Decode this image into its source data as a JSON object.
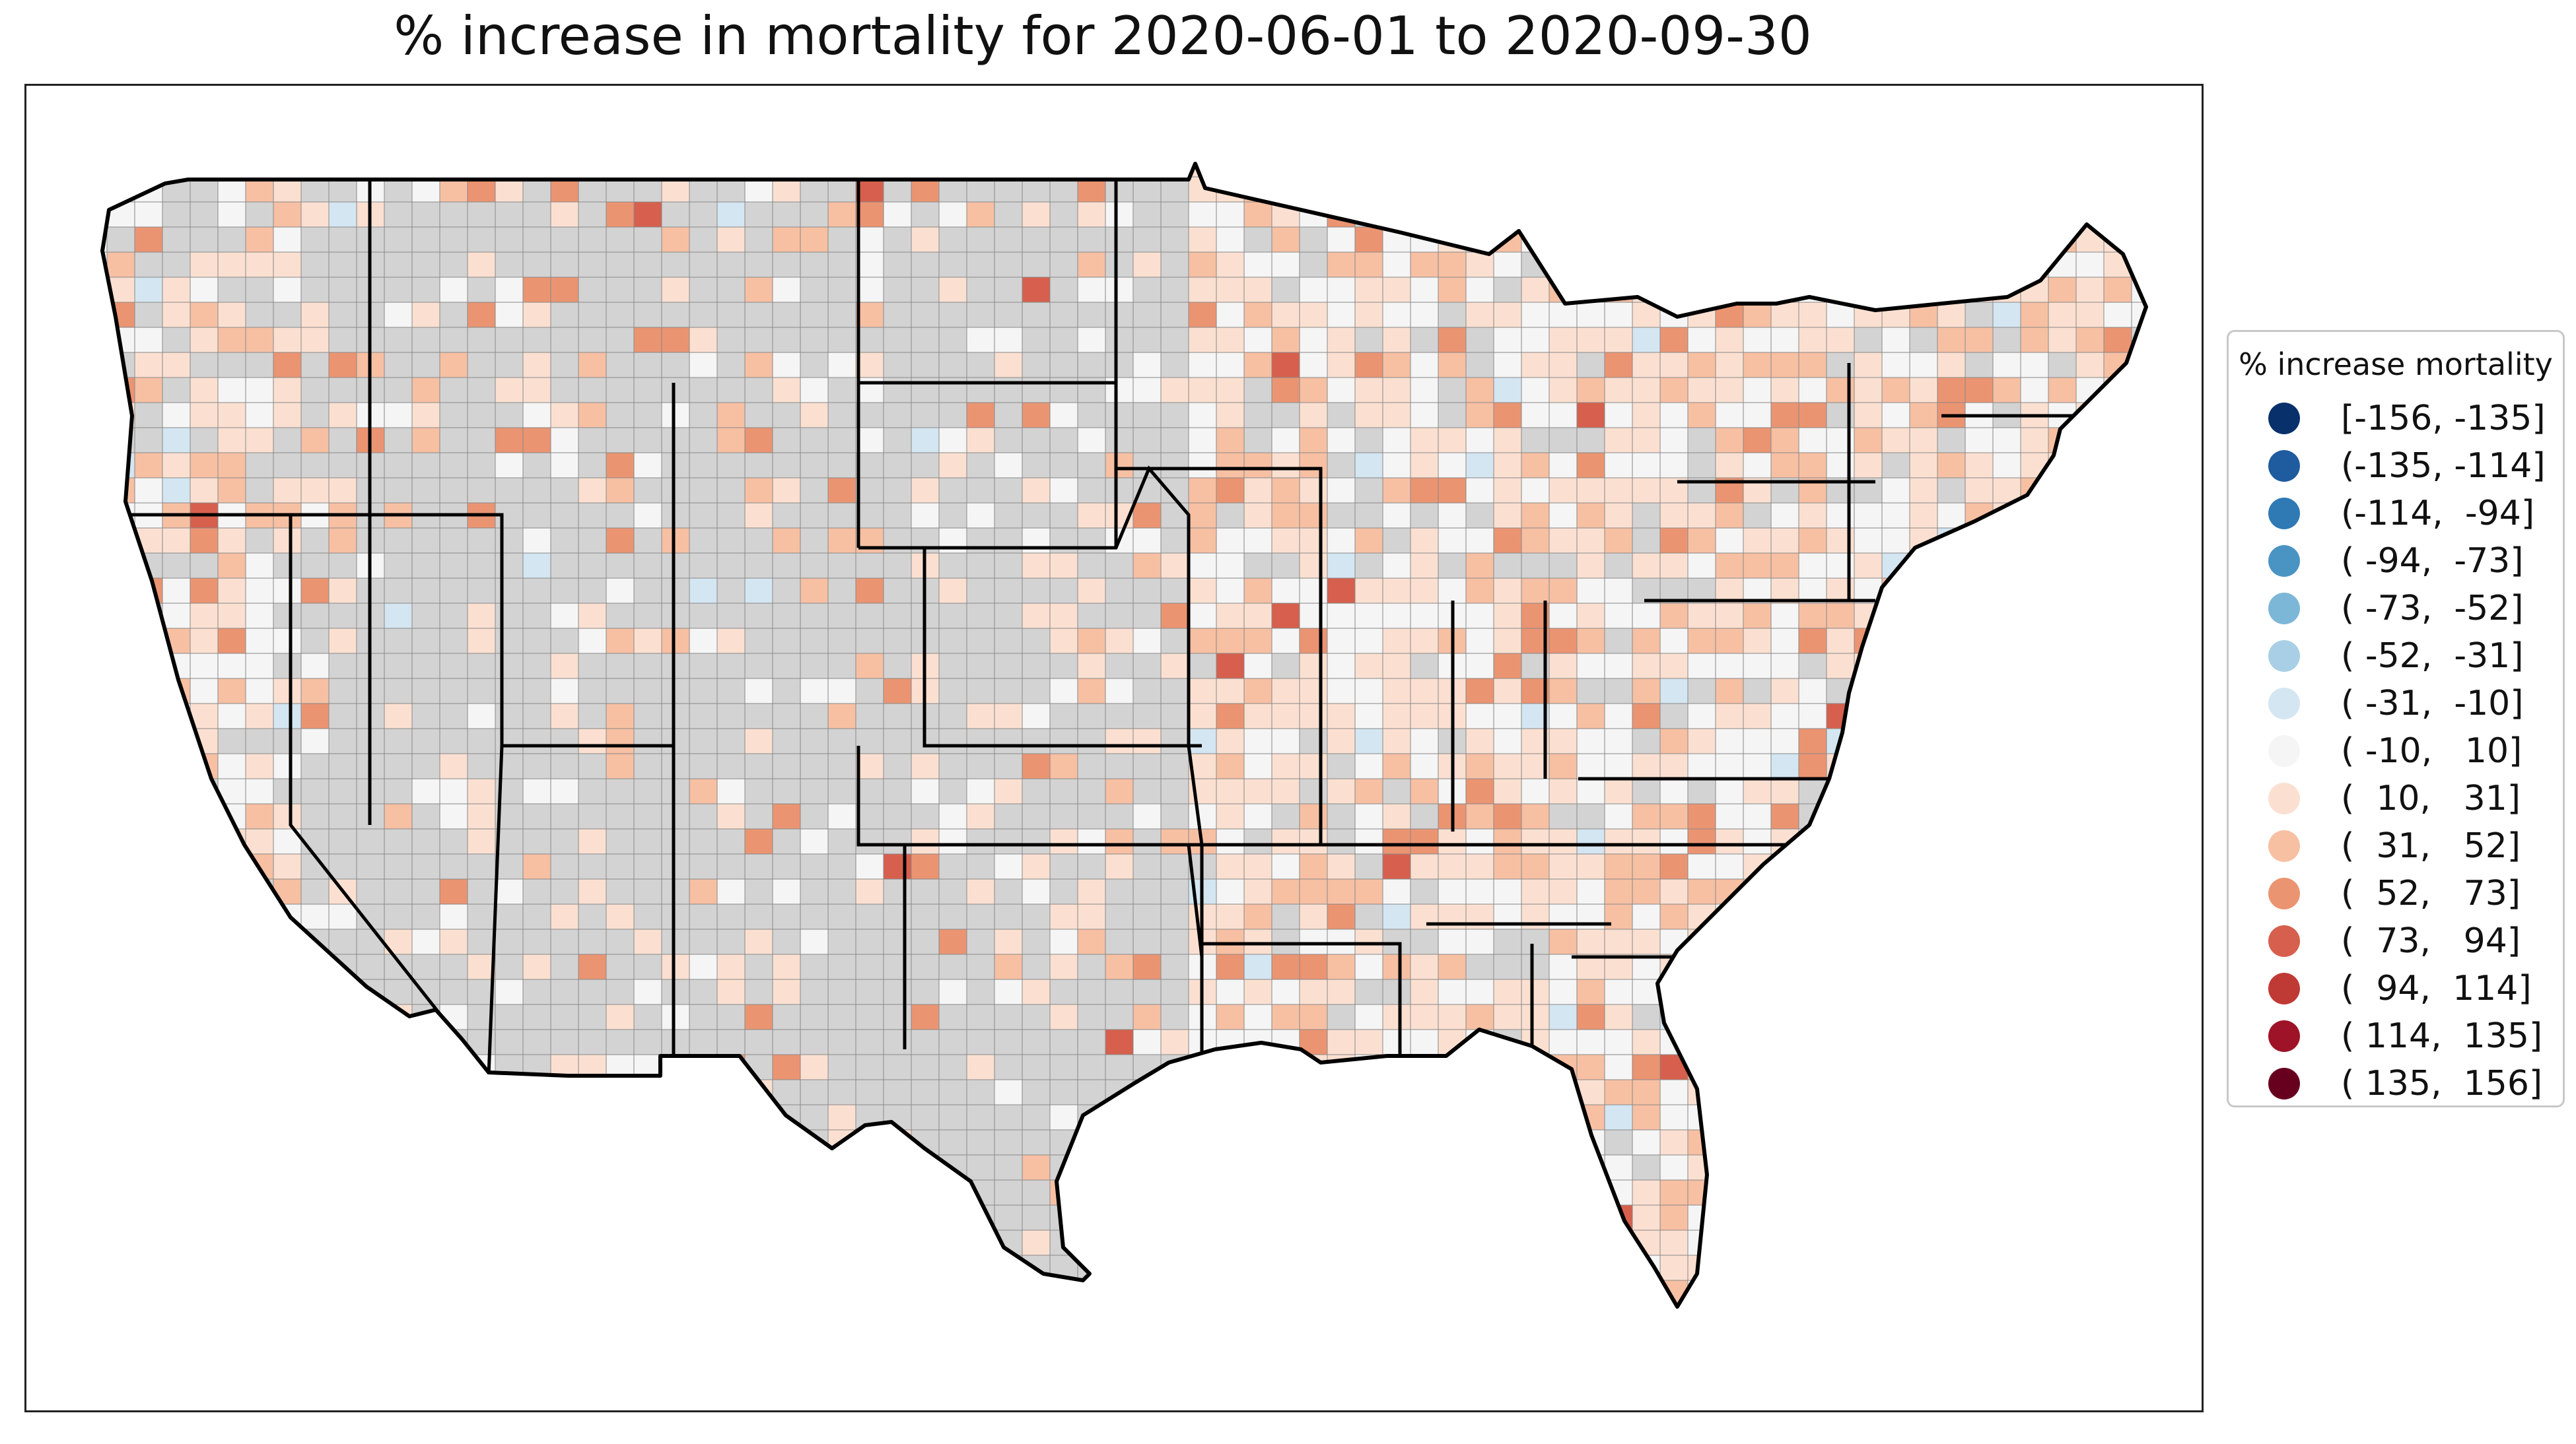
{
  "title": "% increase in mortality for 2020-06-01 to 2020-09-30",
  "legend": {
    "title": "% increase mortality",
    "items": [
      {
        "label": "[-156, -135]",
        "color": "#08306b"
      },
      {
        "label": "(-135, -114]",
        "color": "#1f5b9f"
      },
      {
        "label": "(-114,  -94]",
        "color": "#2f79b5"
      },
      {
        "label": "( -94,  -73]",
        "color": "#4a94c4"
      },
      {
        "label": "( -73,  -52]",
        "color": "#7db7d8"
      },
      {
        "label": "( -52,  -31]",
        "color": "#a8cfe5"
      },
      {
        "label": "( -31,  -10]",
        "color": "#d4e6f1"
      },
      {
        "label": "( -10,   10]",
        "color": "#f5f5f5"
      },
      {
        "label": "(  10,   31]",
        "color": "#fbe0d1"
      },
      {
        "label": "(  31,   52]",
        "color": "#f7c0a3"
      },
      {
        "label": "(  52,   73]",
        "color": "#eb9472"
      },
      {
        "label": "(  73,   94]",
        "color": "#d6604d"
      },
      {
        "label": "(  94,  114]",
        "color": "#c03a35"
      },
      {
        "label": "( 114,  135]",
        "color": "#9e1327"
      },
      {
        "label": "( 135,  156]",
        "color": "#67001f"
      }
    ]
  },
  "map": {
    "no_data_color": "#d3d3d3",
    "state_border_color": "#000000",
    "county_border_color": "#888888"
  }
}
